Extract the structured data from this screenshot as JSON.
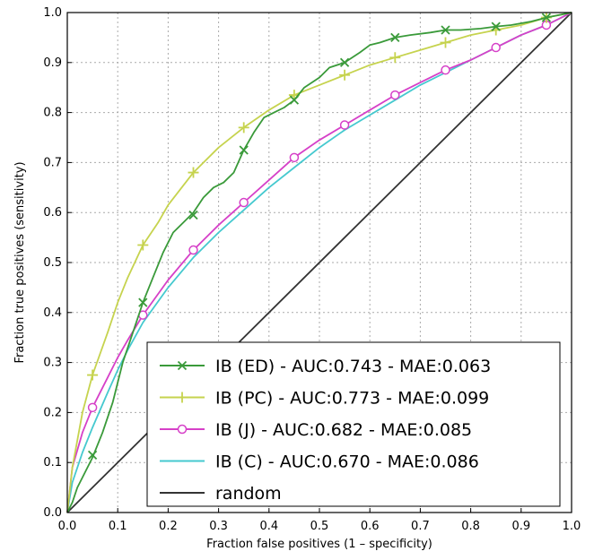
{
  "chart_data": {
    "type": "line",
    "title": "",
    "xlabel": "Fraction false positives (1 – specificity)",
    "ylabel": "Fraction true positives (sensitivity)",
    "xlim": [
      0.0,
      1.0
    ],
    "ylim": [
      0.0,
      1.0
    ],
    "xticks": [
      "0.0",
      "0.1",
      "0.2",
      "0.3",
      "0.4",
      "0.5",
      "0.6",
      "0.7",
      "0.8",
      "0.9",
      "1.0"
    ],
    "yticks": [
      "0.0",
      "0.1",
      "0.2",
      "0.3",
      "0.4",
      "0.5",
      "0.6",
      "0.7",
      "0.8",
      "0.9",
      "1.0"
    ],
    "grid": true,
    "legend_position": "bottom-right",
    "series": [
      {
        "name": "IB (ED) - AUC:0.743 - MAE:0.063",
        "color": "#3a9a3a",
        "marker": "x",
        "x": [
          0.0,
          0.01,
          0.02,
          0.03,
          0.05,
          0.07,
          0.09,
          0.11,
          0.13,
          0.15,
          0.17,
          0.19,
          0.21,
          0.23,
          0.25,
          0.27,
          0.29,
          0.31,
          0.33,
          0.35,
          0.37,
          0.39,
          0.41,
          0.43,
          0.45,
          0.47,
          0.5,
          0.52,
          0.55,
          0.58,
          0.6,
          0.62,
          0.65,
          0.68,
          0.72,
          0.75,
          0.78,
          0.82,
          0.85,
          0.88,
          0.92,
          0.95,
          1.0
        ],
        "y": [
          0.0,
          0.02,
          0.05,
          0.07,
          0.11,
          0.16,
          0.22,
          0.3,
          0.36,
          0.42,
          0.47,
          0.52,
          0.56,
          0.58,
          0.6,
          0.63,
          0.65,
          0.66,
          0.68,
          0.725,
          0.76,
          0.79,
          0.8,
          0.81,
          0.825,
          0.85,
          0.87,
          0.89,
          0.9,
          0.92,
          0.935,
          0.94,
          0.95,
          0.955,
          0.96,
          0.965,
          0.965,
          0.968,
          0.972,
          0.975,
          0.982,
          0.99,
          1.0
        ],
        "marker_x": [
          0.05,
          0.15,
          0.25,
          0.35,
          0.45,
          0.55,
          0.65,
          0.75,
          0.85,
          0.95
        ],
        "marker_y": [
          0.115,
          0.42,
          0.595,
          0.725,
          0.825,
          0.9,
          0.95,
          0.965,
          0.972,
          0.99
        ]
      },
      {
        "name": "IB (PC) - AUC:0.773 - MAE:0.099",
        "color": "#c6d34e",
        "marker": "+",
        "x": [
          0.0,
          0.01,
          0.03,
          0.05,
          0.08,
          0.1,
          0.12,
          0.15,
          0.18,
          0.2,
          0.25,
          0.3,
          0.35,
          0.4,
          0.45,
          0.5,
          0.55,
          0.6,
          0.65,
          0.7,
          0.75,
          0.8,
          0.85,
          0.9,
          0.95,
          1.0
        ],
        "y": [
          0.0,
          0.09,
          0.2,
          0.275,
          0.36,
          0.42,
          0.47,
          0.535,
          0.58,
          0.615,
          0.68,
          0.73,
          0.77,
          0.805,
          0.835,
          0.855,
          0.875,
          0.895,
          0.91,
          0.925,
          0.94,
          0.955,
          0.965,
          0.975,
          0.99,
          1.0
        ],
        "marker_x": [
          0.05,
          0.15,
          0.25,
          0.35,
          0.45,
          0.55,
          0.65,
          0.75,
          0.85,
          0.95
        ],
        "marker_y": [
          0.275,
          0.535,
          0.68,
          0.77,
          0.835,
          0.875,
          0.91,
          0.94,
          0.965,
          0.99
        ]
      },
      {
        "name": "IB (J) - AUC:0.682 - MAE:0.085",
        "color": "#d640c8",
        "marker": "o",
        "x": [
          0.0,
          0.01,
          0.03,
          0.05,
          0.08,
          0.1,
          0.12,
          0.15,
          0.2,
          0.25,
          0.3,
          0.35,
          0.4,
          0.45,
          0.5,
          0.55,
          0.6,
          0.65,
          0.7,
          0.75,
          0.8,
          0.85,
          0.9,
          0.95,
          1.0
        ],
        "y": [
          0.0,
          0.09,
          0.16,
          0.21,
          0.27,
          0.31,
          0.345,
          0.395,
          0.465,
          0.525,
          0.575,
          0.62,
          0.665,
          0.71,
          0.745,
          0.775,
          0.805,
          0.835,
          0.86,
          0.885,
          0.905,
          0.93,
          0.955,
          0.975,
          1.0
        ],
        "marker_x": [
          0.05,
          0.15,
          0.25,
          0.35,
          0.45,
          0.55,
          0.65,
          0.75,
          0.85,
          0.95
        ],
        "marker_y": [
          0.21,
          0.395,
          0.525,
          0.62,
          0.71,
          0.775,
          0.835,
          0.885,
          0.93,
          0.975
        ]
      },
      {
        "name": "IB (C) - AUC:0.670 - MAE:0.086",
        "color": "#45c9cf",
        "marker": "none",
        "x": [
          0.0,
          0.01,
          0.03,
          0.05,
          0.08,
          0.1,
          0.12,
          0.15,
          0.2,
          0.25,
          0.3,
          0.35,
          0.4,
          0.45,
          0.5,
          0.55,
          0.6,
          0.65,
          0.7,
          0.75,
          0.8,
          0.85,
          0.9,
          0.95,
          1.0
        ],
        "y": [
          0.0,
          0.06,
          0.12,
          0.17,
          0.24,
          0.285,
          0.325,
          0.38,
          0.45,
          0.51,
          0.56,
          0.605,
          0.65,
          0.69,
          0.73,
          0.765,
          0.795,
          0.825,
          0.855,
          0.88,
          0.905,
          0.93,
          0.955,
          0.975,
          1.0
        ]
      },
      {
        "name": "random",
        "color": "#333333",
        "marker": "none",
        "x": [
          0.0,
          1.0
        ],
        "y": [
          0.0,
          1.0
        ]
      }
    ]
  }
}
